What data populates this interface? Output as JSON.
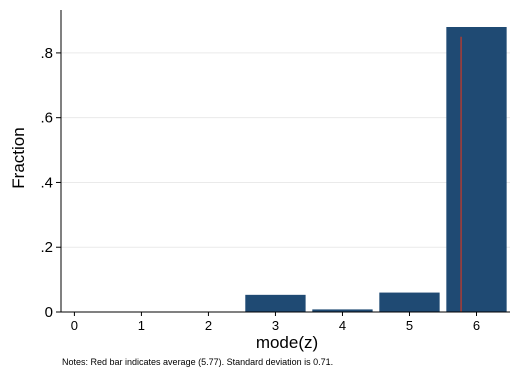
{
  "chart_data": {
    "type": "bar",
    "xlabel": "mode(z)",
    "ylabel": "Fraction",
    "x_ticks": [
      "0",
      "1",
      "2",
      "3",
      "4",
      "5",
      "6"
    ],
    "y_ticks": [
      "0",
      ".2",
      ".4",
      ".6",
      ".8"
    ],
    "x_range": [
      -0.2,
      6.5
    ],
    "ylim": [
      0,
      0.88
    ],
    "bars": [
      {
        "x": 3,
        "value": 0.053
      },
      {
        "x": 4,
        "value": 0.008
      },
      {
        "x": 5,
        "value": 0.06
      },
      {
        "x": 6,
        "value": 0.88
      }
    ],
    "reference_line": {
      "x": 5.77,
      "value": 0.85
    },
    "grid": true,
    "bar_color": "#1f4a73",
    "reference_color": "#c0392b",
    "note": "Notes: Red bar indicates average (5.77). Standard deviation is 0.71."
  }
}
